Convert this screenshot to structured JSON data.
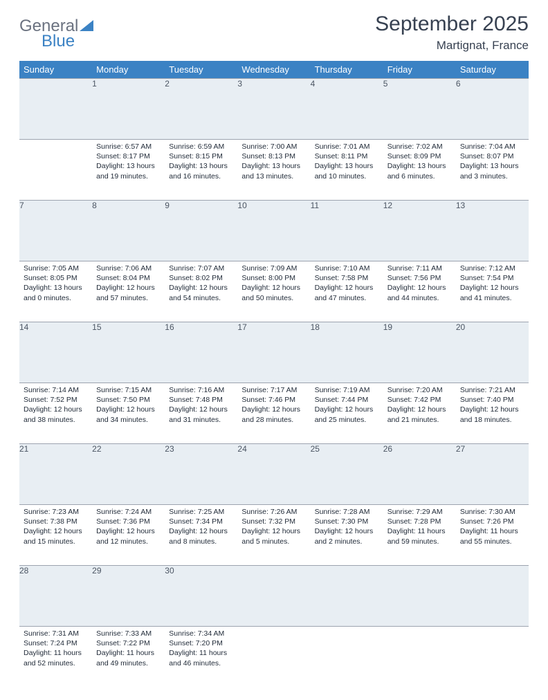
{
  "logo": {
    "line1": "General",
    "line2": "Blue"
  },
  "title": "September 2025",
  "location": "Martignat, France",
  "colors": {
    "header_bg": "#3b82c4",
    "header_text": "#ffffff",
    "daynum_bg": "#e8eef3",
    "daynum_border": "#9ca3af",
    "body_text": "#1f2937",
    "title_text": "#374151",
    "logo_gray": "#6b7280",
    "logo_blue": "#3b82c4"
  },
  "weekdays": [
    "Sunday",
    "Monday",
    "Tuesday",
    "Wednesday",
    "Thursday",
    "Friday",
    "Saturday"
  ],
  "weeks": [
    {
      "nums": [
        "",
        "1",
        "2",
        "3",
        "4",
        "5",
        "6"
      ],
      "cells": [
        null,
        {
          "sunrise": "Sunrise: 6:57 AM",
          "sunset": "Sunset: 8:17 PM",
          "daylight": "Daylight: 13 hours and 19 minutes."
        },
        {
          "sunrise": "Sunrise: 6:59 AM",
          "sunset": "Sunset: 8:15 PM",
          "daylight": "Daylight: 13 hours and 16 minutes."
        },
        {
          "sunrise": "Sunrise: 7:00 AM",
          "sunset": "Sunset: 8:13 PM",
          "daylight": "Daylight: 13 hours and 13 minutes."
        },
        {
          "sunrise": "Sunrise: 7:01 AM",
          "sunset": "Sunset: 8:11 PM",
          "daylight": "Daylight: 13 hours and 10 minutes."
        },
        {
          "sunrise": "Sunrise: 7:02 AM",
          "sunset": "Sunset: 8:09 PM",
          "daylight": "Daylight: 13 hours and 6 minutes."
        },
        {
          "sunrise": "Sunrise: 7:04 AM",
          "sunset": "Sunset: 8:07 PM",
          "daylight": "Daylight: 13 hours and 3 minutes."
        }
      ]
    },
    {
      "nums": [
        "7",
        "8",
        "9",
        "10",
        "11",
        "12",
        "13"
      ],
      "cells": [
        {
          "sunrise": "Sunrise: 7:05 AM",
          "sunset": "Sunset: 8:05 PM",
          "daylight": "Daylight: 13 hours and 0 minutes."
        },
        {
          "sunrise": "Sunrise: 7:06 AM",
          "sunset": "Sunset: 8:04 PM",
          "daylight": "Daylight: 12 hours and 57 minutes."
        },
        {
          "sunrise": "Sunrise: 7:07 AM",
          "sunset": "Sunset: 8:02 PM",
          "daylight": "Daylight: 12 hours and 54 minutes."
        },
        {
          "sunrise": "Sunrise: 7:09 AM",
          "sunset": "Sunset: 8:00 PM",
          "daylight": "Daylight: 12 hours and 50 minutes."
        },
        {
          "sunrise": "Sunrise: 7:10 AM",
          "sunset": "Sunset: 7:58 PM",
          "daylight": "Daylight: 12 hours and 47 minutes."
        },
        {
          "sunrise": "Sunrise: 7:11 AM",
          "sunset": "Sunset: 7:56 PM",
          "daylight": "Daylight: 12 hours and 44 minutes."
        },
        {
          "sunrise": "Sunrise: 7:12 AM",
          "sunset": "Sunset: 7:54 PM",
          "daylight": "Daylight: 12 hours and 41 minutes."
        }
      ]
    },
    {
      "nums": [
        "14",
        "15",
        "16",
        "17",
        "18",
        "19",
        "20"
      ],
      "cells": [
        {
          "sunrise": "Sunrise: 7:14 AM",
          "sunset": "Sunset: 7:52 PM",
          "daylight": "Daylight: 12 hours and 38 minutes."
        },
        {
          "sunrise": "Sunrise: 7:15 AM",
          "sunset": "Sunset: 7:50 PM",
          "daylight": "Daylight: 12 hours and 34 minutes."
        },
        {
          "sunrise": "Sunrise: 7:16 AM",
          "sunset": "Sunset: 7:48 PM",
          "daylight": "Daylight: 12 hours and 31 minutes."
        },
        {
          "sunrise": "Sunrise: 7:17 AM",
          "sunset": "Sunset: 7:46 PM",
          "daylight": "Daylight: 12 hours and 28 minutes."
        },
        {
          "sunrise": "Sunrise: 7:19 AM",
          "sunset": "Sunset: 7:44 PM",
          "daylight": "Daylight: 12 hours and 25 minutes."
        },
        {
          "sunrise": "Sunrise: 7:20 AM",
          "sunset": "Sunset: 7:42 PM",
          "daylight": "Daylight: 12 hours and 21 minutes."
        },
        {
          "sunrise": "Sunrise: 7:21 AM",
          "sunset": "Sunset: 7:40 PM",
          "daylight": "Daylight: 12 hours and 18 minutes."
        }
      ]
    },
    {
      "nums": [
        "21",
        "22",
        "23",
        "24",
        "25",
        "26",
        "27"
      ],
      "cells": [
        {
          "sunrise": "Sunrise: 7:23 AM",
          "sunset": "Sunset: 7:38 PM",
          "daylight": "Daylight: 12 hours and 15 minutes."
        },
        {
          "sunrise": "Sunrise: 7:24 AM",
          "sunset": "Sunset: 7:36 PM",
          "daylight": "Daylight: 12 hours and 12 minutes."
        },
        {
          "sunrise": "Sunrise: 7:25 AM",
          "sunset": "Sunset: 7:34 PM",
          "daylight": "Daylight: 12 hours and 8 minutes."
        },
        {
          "sunrise": "Sunrise: 7:26 AM",
          "sunset": "Sunset: 7:32 PM",
          "daylight": "Daylight: 12 hours and 5 minutes."
        },
        {
          "sunrise": "Sunrise: 7:28 AM",
          "sunset": "Sunset: 7:30 PM",
          "daylight": "Daylight: 12 hours and 2 minutes."
        },
        {
          "sunrise": "Sunrise: 7:29 AM",
          "sunset": "Sunset: 7:28 PM",
          "daylight": "Daylight: 11 hours and 59 minutes."
        },
        {
          "sunrise": "Sunrise: 7:30 AM",
          "sunset": "Sunset: 7:26 PM",
          "daylight": "Daylight: 11 hours and 55 minutes."
        }
      ]
    },
    {
      "nums": [
        "28",
        "29",
        "30",
        "",
        "",
        "",
        ""
      ],
      "cells": [
        {
          "sunrise": "Sunrise: 7:31 AM",
          "sunset": "Sunset: 7:24 PM",
          "daylight": "Daylight: 11 hours and 52 minutes."
        },
        {
          "sunrise": "Sunrise: 7:33 AM",
          "sunset": "Sunset: 7:22 PM",
          "daylight": "Daylight: 11 hours and 49 minutes."
        },
        {
          "sunrise": "Sunrise: 7:34 AM",
          "sunset": "Sunset: 7:20 PM",
          "daylight": "Daylight: 11 hours and 46 minutes."
        },
        null,
        null,
        null,
        null
      ]
    }
  ]
}
